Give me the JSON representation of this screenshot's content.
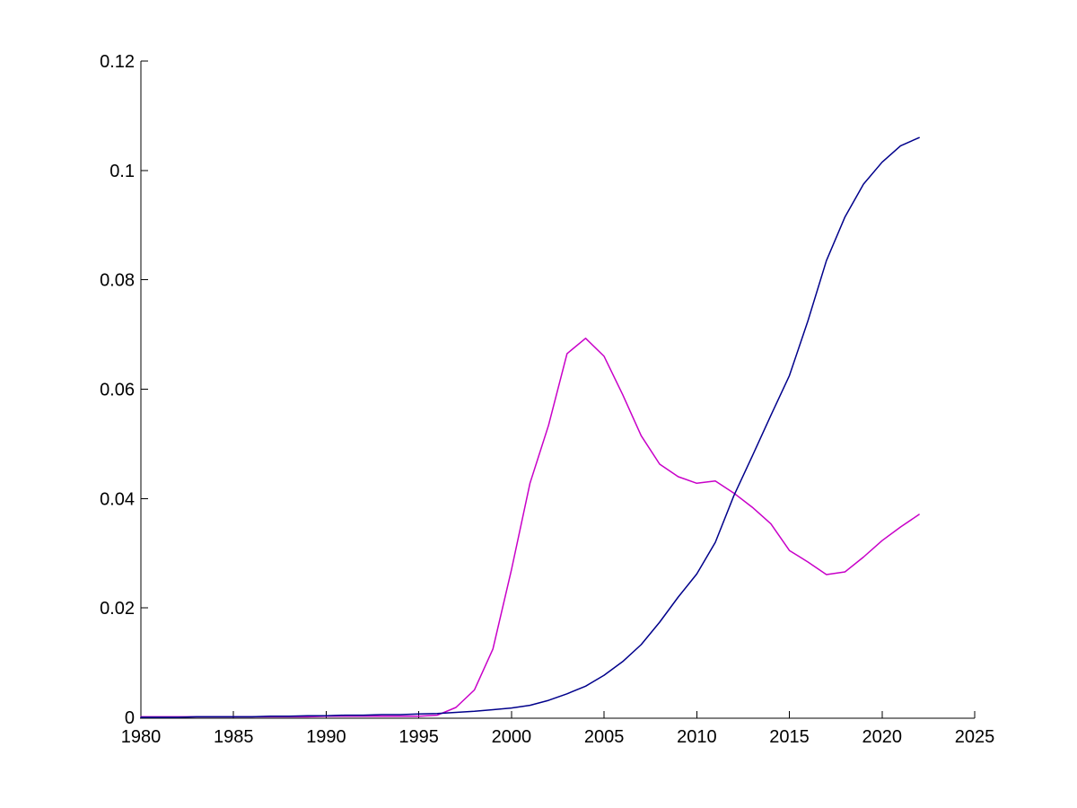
{
  "chart_data": {
    "type": "line",
    "title": "",
    "xlabel": "",
    "ylabel": "",
    "xlim": [
      1980,
      2025
    ],
    "ylim": [
      0,
      0.12
    ],
    "grid": false,
    "legend": "none",
    "background_color": "#FFFFFF",
    "axis_color": "#000000",
    "x_ticks": [
      1980,
      1985,
      1990,
      1995,
      2000,
      2005,
      2010,
      2015,
      2020,
      2025
    ],
    "x_tick_labels": [
      "1980",
      "1985",
      "1990",
      "1995",
      "2000",
      "2005",
      "2010",
      "2015",
      "2020",
      "2025"
    ],
    "y_ticks": [
      0,
      0.02,
      0.04,
      0.06,
      0.08,
      0.1,
      0.12
    ],
    "y_tick_labels": [
      "0",
      "0.02",
      "0.04",
      "0.06",
      "0.08",
      "0.1",
      "0.12"
    ],
    "x": [
      1980,
      1981,
      1982,
      1983,
      1984,
      1985,
      1986,
      1987,
      1988,
      1989,
      1990,
      1991,
      1992,
      1993,
      1994,
      1995,
      1996,
      1997,
      1998,
      1999,
      2000,
      2001,
      2002,
      2003,
      2004,
      2005,
      2006,
      2007,
      2008,
      2009,
      2010,
      2011,
      2012,
      2013,
      2014,
      2015,
      2016,
      2017,
      2018,
      2019,
      2020,
      2021,
      2022
    ],
    "series": [
      {
        "name": "magenta-line",
        "color": "#C800C8",
        "values": [
          0.0001,
          0.0001,
          0.0001,
          0.0001,
          0.0001,
          0.0001,
          0.0001,
          0.0001,
          0.0001,
          0.0001,
          0.0002,
          0.0002,
          0.0002,
          0.0002,
          0.0002,
          0.0002,
          0.0004,
          0.0018,
          0.005,
          0.0125,
          0.027,
          0.0428,
          0.0534,
          0.0665,
          0.0693,
          0.066,
          0.059,
          0.0515,
          0.0463,
          0.044,
          0.0428,
          0.0432,
          0.041,
          0.0384,
          0.0354,
          0.0305,
          0.0284,
          0.0261,
          0.0266,
          0.0293,
          0.0323,
          0.0348,
          0.0371
        ]
      },
      {
        "name": "dark-blue-line",
        "color": "#00008B",
        "values": [
          0.0,
          0.0,
          0.0,
          0.0001,
          0.0001,
          0.0001,
          0.0001,
          0.0002,
          0.0002,
          0.0003,
          0.0003,
          0.0004,
          0.0004,
          0.0005,
          0.0005,
          0.0006,
          0.0007,
          0.0009,
          0.0011,
          0.0014,
          0.0017,
          0.0022,
          0.0031,
          0.0043,
          0.0057,
          0.0077,
          0.0102,
          0.0133,
          0.0174,
          0.022,
          0.0262,
          0.032,
          0.0405,
          0.0478,
          0.0552,
          0.0625,
          0.0725,
          0.0835,
          0.0915,
          0.0975,
          0.1015,
          0.1045,
          0.106
        ]
      }
    ]
  }
}
